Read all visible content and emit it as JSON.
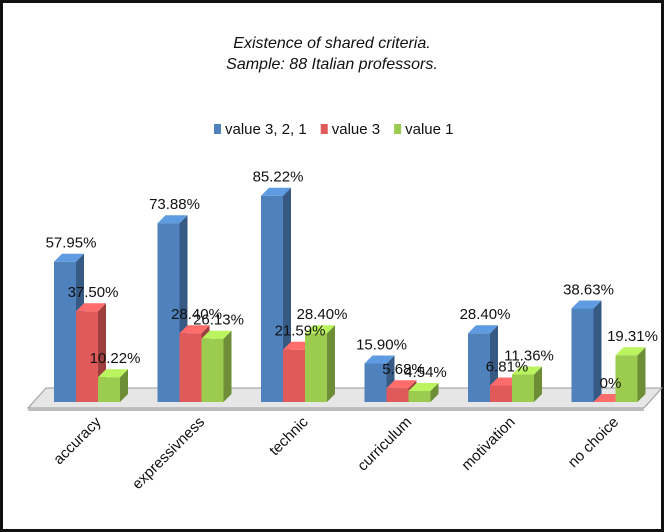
{
  "chart_data": {
    "type": "bar3d",
    "title": [
      "Existence of shared criteria.",
      "Sample: 88 Italian professors."
    ],
    "categories": [
      "accuracy",
      "expressivness",
      "technic",
      "curriculum",
      "motivation",
      "no choice"
    ],
    "series": [
      {
        "name": "value 3, 2, 1",
        "color": "#4f81bd",
        "values": [
          57.95,
          73.88,
          85.22,
          15.9,
          28.4,
          38.63
        ],
        "value_labels": [
          "57.95%",
          "73.88%",
          "85.22%",
          "15.90%",
          "28.40%",
          "38.63%"
        ]
      },
      {
        "name": "value 3",
        "color": "#e05a5a",
        "values": [
          37.5,
          28.4,
          21.59,
          5.68,
          6.81,
          0
        ],
        "value_labels": [
          "37.50%",
          "28.40%",
          "21.59%",
          "5.68%",
          "6.81%",
          "0%"
        ]
      },
      {
        "name": "value 1",
        "color": "#9bcb4f",
        "values": [
          10.22,
          26.13,
          28.4,
          4.54,
          11.36,
          19.31
        ],
        "value_labels": [
          "10.22%",
          "26.13%",
          "28.40%",
          "4.54%",
          "11.36%",
          "19.31%"
        ]
      }
    ],
    "legend": "top"
  }
}
